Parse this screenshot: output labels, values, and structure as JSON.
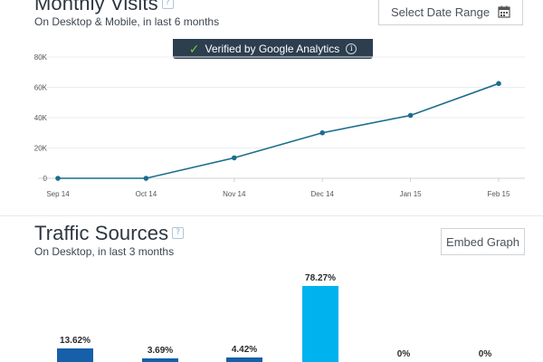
{
  "monthly_visits": {
    "title": "Monthly Visits",
    "subtitle": "On Desktop & Mobile, in last 6 months",
    "help_glyph": "?",
    "date_range_button": "Select Date Range",
    "verified_banner": "Verified by Google Analytics",
    "info_glyph": "i"
  },
  "traffic_sources": {
    "title": "Traffic Sources",
    "subtitle": "On Desktop, in last 3 months",
    "help_glyph": "?",
    "embed_button": "Embed Graph"
  },
  "chart_data": [
    {
      "type": "line",
      "x": [
        "Sep 14",
        "Oct 14",
        "Nov 14",
        "Dec 14",
        "Jan 15",
        "Feb 15"
      ],
      "series": [
        {
          "values": [
            0,
            0,
            13500,
            30000,
            41500,
            62500
          ],
          "color": "#1c6e8c"
        }
      ],
      "y_ticks": [
        "0",
        "20K",
        "40K",
        "60K",
        "80K"
      ],
      "ylim": [
        0,
        80000
      ],
      "grid": true
    },
    {
      "type": "bar",
      "values": [
        13.62,
        3.69,
        4.42,
        78.27,
        0,
        0
      ],
      "labels": [
        "13.62%",
        "3.69%",
        "4.42%",
        "78.27%",
        "0%",
        "0%"
      ],
      "colors": [
        "#1560a8",
        "#1560a8",
        "#1560a8",
        "#00b2ee",
        "#1560a8",
        "#1560a8"
      ],
      "ylim": [
        0,
        100
      ]
    }
  ]
}
